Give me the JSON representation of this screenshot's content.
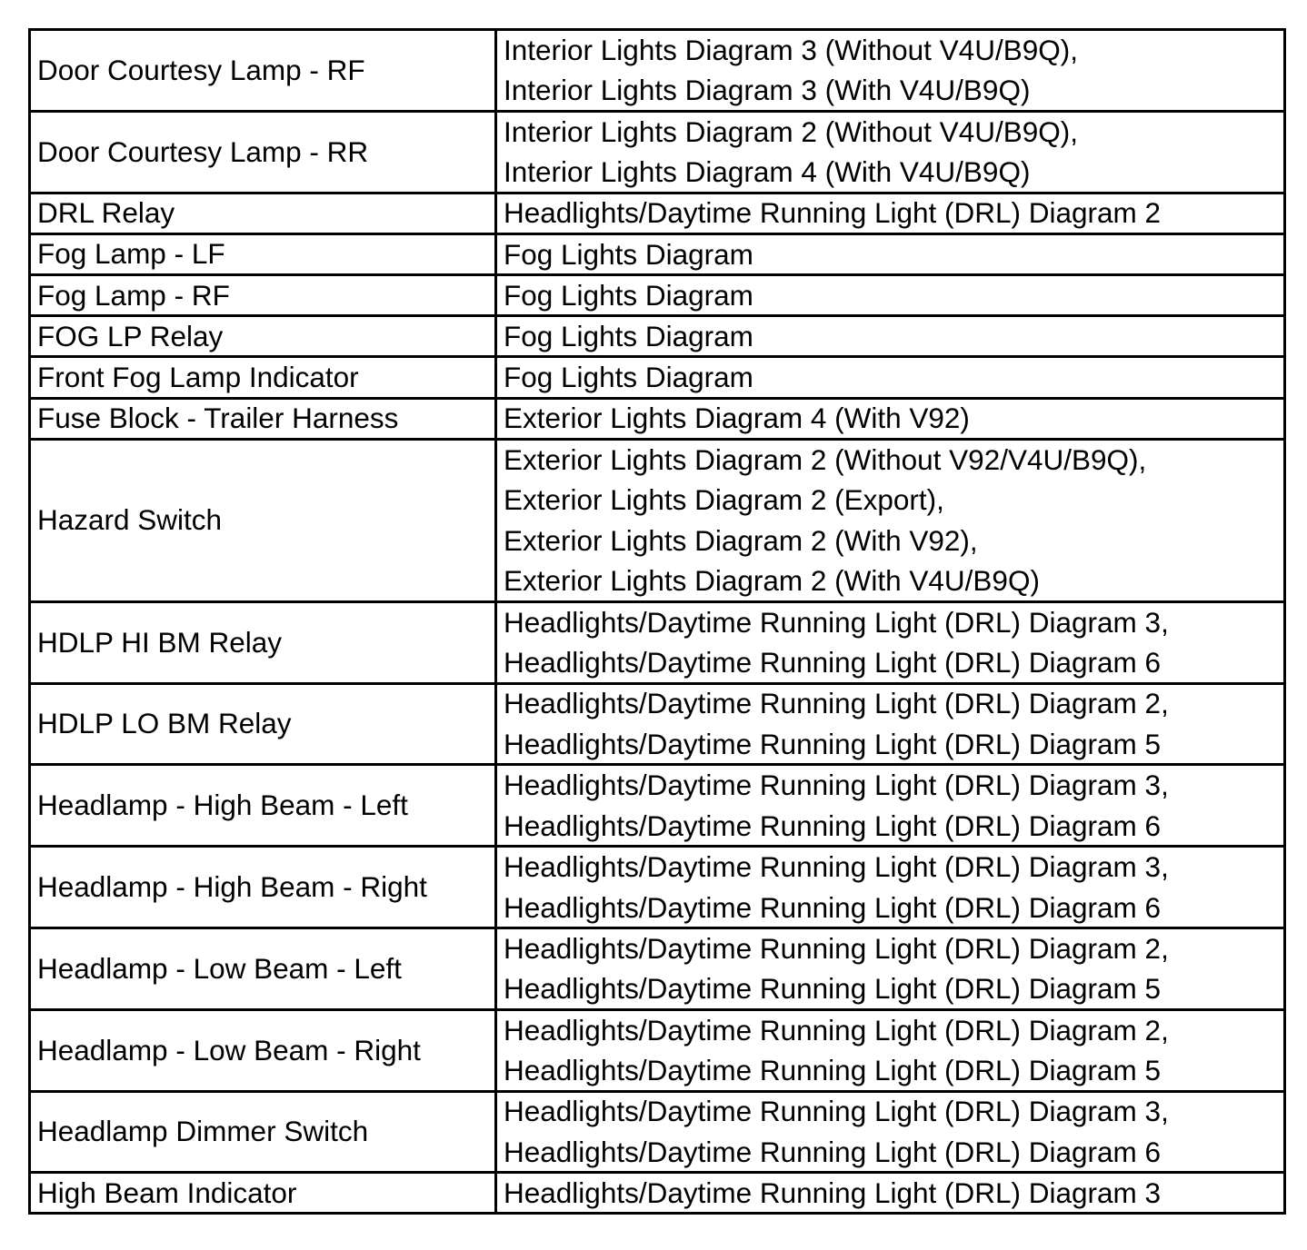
{
  "rows": [
    {
      "component": "Door Courtesy Lamp - RF",
      "diagrams": [
        "Interior Lights Diagram 3 (Without V4U/B9Q),",
        "Interior Lights Diagram 3 (With V4U/B9Q)"
      ]
    },
    {
      "component": "Door Courtesy Lamp - RR",
      "diagrams": [
        "Interior Lights Diagram 2 (Without V4U/B9Q),",
        "Interior Lights Diagram 4 (With V4U/B9Q)"
      ]
    },
    {
      "component": "DRL Relay",
      "diagrams": [
        "Headlights/Daytime Running Light (DRL) Diagram 2"
      ]
    },
    {
      "component": "Fog Lamp - LF",
      "diagrams": [
        "Fog Lights Diagram"
      ]
    },
    {
      "component": "Fog Lamp - RF",
      "diagrams": [
        "Fog Lights Diagram"
      ]
    },
    {
      "component": "FOG LP Relay",
      "diagrams": [
        "Fog Lights Diagram"
      ]
    },
    {
      "component": "Front Fog Lamp Indicator",
      "diagrams": [
        "Fog Lights Diagram"
      ]
    },
    {
      "component": "Fuse Block - Trailer Harness",
      "diagrams": [
        "Exterior Lights Diagram 4 (With V92)"
      ]
    },
    {
      "component": "Hazard Switch",
      "diagrams": [
        "Exterior Lights Diagram 2 (Without V92/V4U/B9Q),",
        "Exterior Lights Diagram 2 (Export),",
        "Exterior Lights Diagram 2 (With V92),",
        "Exterior Lights Diagram 2 (With V4U/B9Q)"
      ]
    },
    {
      "component": "HDLP HI BM Relay",
      "diagrams": [
        "Headlights/Daytime Running Light (DRL) Diagram 3,",
        "Headlights/Daytime Running Light (DRL) Diagram 6"
      ]
    },
    {
      "component": "HDLP LO BM Relay",
      "diagrams": [
        "Headlights/Daytime Running Light (DRL) Diagram 2,",
        "Headlights/Daytime Running Light (DRL) Diagram 5"
      ]
    },
    {
      "component": "Headlamp - High Beam - Left",
      "diagrams": [
        "Headlights/Daytime Running Light (DRL) Diagram 3,",
        "Headlights/Daytime Running Light (DRL) Diagram 6"
      ]
    },
    {
      "component": "Headlamp - High Beam - Right",
      "diagrams": [
        "Headlights/Daytime Running Light (DRL) Diagram 3,",
        "Headlights/Daytime Running Light (DRL) Diagram 6"
      ]
    },
    {
      "component": "Headlamp - Low Beam - Left",
      "diagrams": [
        "Headlights/Daytime Running Light (DRL) Diagram 2,",
        "Headlights/Daytime Running Light (DRL) Diagram 5"
      ]
    },
    {
      "component": "Headlamp - Low Beam - Right",
      "diagrams": [
        "Headlights/Daytime Running Light (DRL) Diagram 2,",
        "Headlights/Daytime Running Light (DRL) Diagram 5"
      ]
    },
    {
      "component": "Headlamp Dimmer Switch",
      "diagrams": [
        "Headlights/Daytime Running Light (DRL) Diagram 3,",
        "Headlights/Daytime Running Light (DRL) Diagram 6"
      ]
    },
    {
      "component": "High Beam Indicator",
      "diagrams": [
        "Headlights/Daytime Running Light (DRL) Diagram 3"
      ]
    }
  ]
}
